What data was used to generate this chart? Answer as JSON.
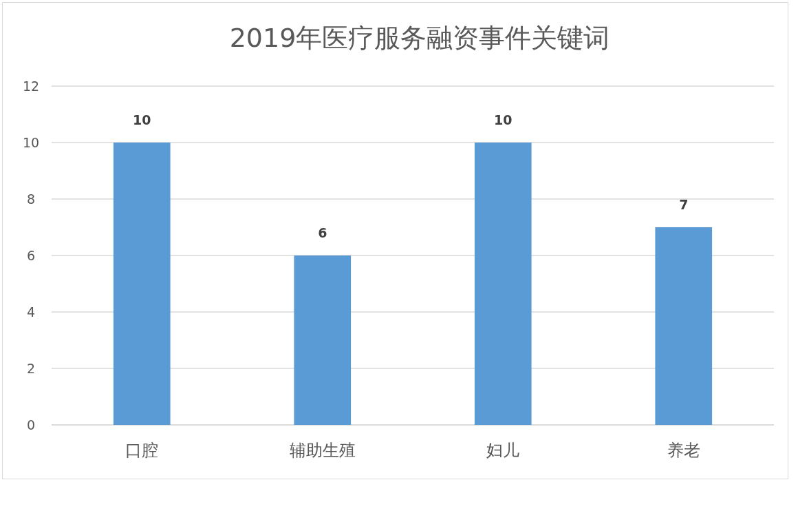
{
  "chart_data": {
    "type": "bar",
    "title": "2019年医疗服务融资事件关键词",
    "categories": [
      "口腔",
      "辅助生殖",
      "妇儿",
      "养老"
    ],
    "values": [
      10,
      6,
      10,
      7
    ],
    "color": "#5b9bd5",
    "ylim": [
      0,
      12
    ],
    "yticks": [
      0,
      2,
      4,
      6,
      8,
      10,
      12
    ],
    "grid": "y",
    "data_labels": true
  }
}
